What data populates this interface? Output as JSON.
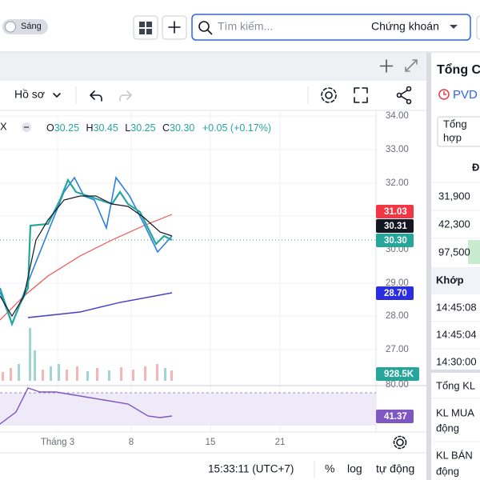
{
  "top_bar": {
    "theme_toggle": "Sáng",
    "search_placeholder": "Tìm kiếm...",
    "market_select": "Chứng khoán"
  },
  "toolbar": {
    "profile": "Hồ sơ"
  },
  "legend": {
    "symbol": "X",
    "open_label": "O",
    "open": "30.25",
    "high_label": "H",
    "high": "30.45",
    "low_label": "L",
    "low": "30.25",
    "close_label": "C",
    "close": "30.30",
    "change": "+0.05 (+0.17%)"
  },
  "price_axis": [
    "34.00",
    "33.00",
    "32.00",
    "30.00",
    "29.00",
    "28.00",
    "27.00"
  ],
  "badges": {
    "ma_red": "31.03",
    "ma_black": "30.31",
    "last_price": "30.30",
    "ma_blue": "28.70",
    "volume": "928.5K",
    "rsi": "41.37"
  },
  "rsi_axis": "80.00",
  "time_axis": [
    "Tháng 3",
    "8",
    "15",
    "21"
  ],
  "status_bar": {
    "clock": "15:33:11 (UTC+7)",
    "percent": "%",
    "log": "log",
    "auto": "tự động"
  },
  "side_panel": {
    "title": "Tổng C",
    "symbol": "PVD",
    "view_select": [
      "Tổng",
      "hợp"
    ],
    "column_head": "Đ",
    "prices": [
      "31,900",
      "42,300",
      "97,500"
    ],
    "matched_header": "Khớp",
    "times": [
      "14:45:08",
      "14:45:04",
      "14:30:00"
    ],
    "totals": [
      "Tổng KL",
      [
        "KL MUA",
        "động"
      ],
      [
        "KL BÁN",
        "động"
      ]
    ]
  }
}
